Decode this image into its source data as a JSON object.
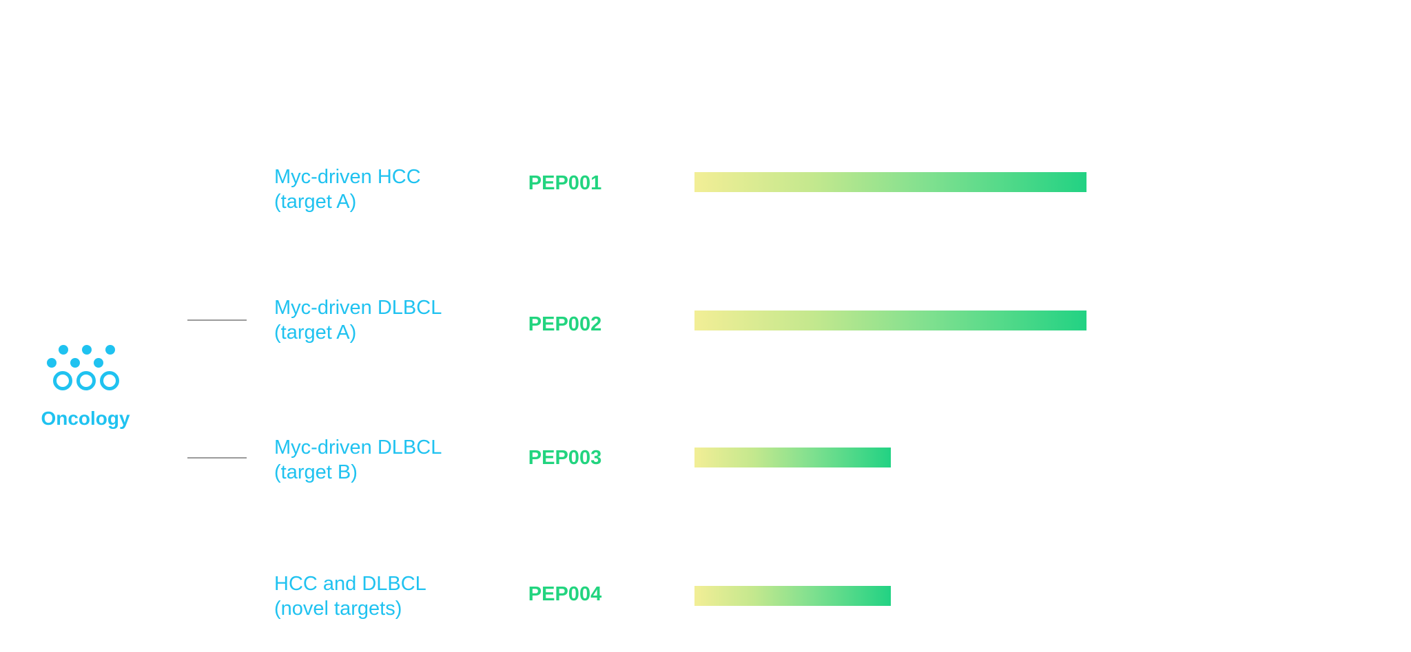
{
  "therapeutic_area": {
    "label": "Oncology",
    "icon": "oncology-icon",
    "color": "#1fc2f0"
  },
  "programs": [
    {
      "indication_line1": "Myc-driven HCC",
      "indication_line2": "(target A)",
      "program": "PEP001",
      "progress": 1.0
    },
    {
      "indication_line1": "Myc-driven DLBCL",
      "indication_line2": "(target A)",
      "program": "PEP002",
      "progress": 1.0
    },
    {
      "indication_line1": "Myc-driven DLBCL",
      "indication_line2": "(target B)",
      "program": "PEP003",
      "progress": 0.5
    },
    {
      "indication_line1": "HCC and DLBCL",
      "indication_line2": "(novel targets)",
      "program": "PEP004",
      "progress": 0.5
    }
  ],
  "colors": {
    "indication_text": "#1fc2f0",
    "program_text": "#22d47f",
    "bar_start": "#f2ee96",
    "bar_end": "#22d283"
  }
}
